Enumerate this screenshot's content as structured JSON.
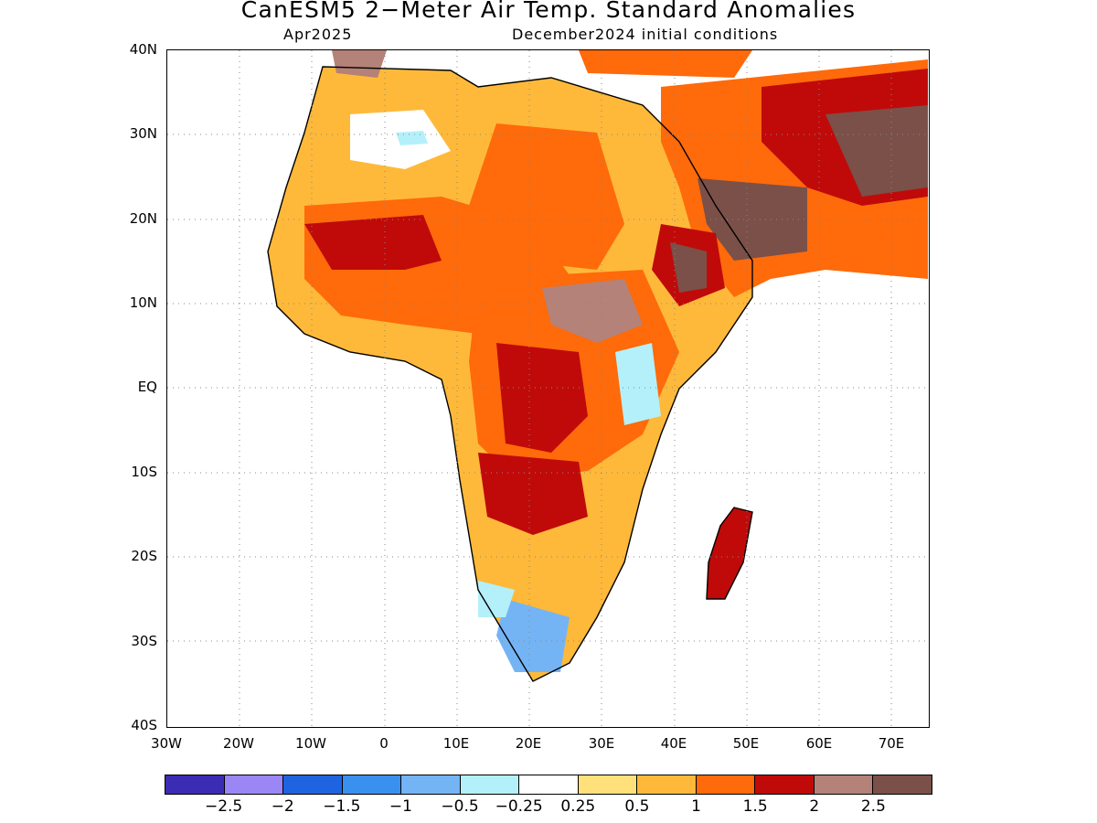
{
  "title": "CanESM5 2−Meter Air Temp. Standard Anomalies",
  "valid_month": "Apr2025",
  "initial_conditions": "December2024 initial conditions",
  "lat_labels": [
    "40N",
    "30N",
    "20N",
    "10N",
    "EQ",
    "10S",
    "20S",
    "30S",
    "40S"
  ],
  "lon_labels": [
    "30W",
    "20W",
    "10W",
    "0",
    "10E",
    "20E",
    "30E",
    "40E",
    "50E",
    "60E",
    "70E"
  ],
  "colorbar": {
    "labels": [
      "−2.5",
      "−2",
      "−1.5",
      "−1",
      "−0.5",
      "−0.25",
      "0.25",
      "0.5",
      "1",
      "1.5",
      "2",
      "2.5"
    ],
    "colors": [
      "#3c2cb4",
      "#9b86f5",
      "#1e64e1",
      "#3a90ef",
      "#74b4f5",
      "#b4f0fa",
      "#ffffff",
      "#ffe07a",
      "#ffb93a",
      "#ff6a0a",
      "#c00a0a",
      "#b48278",
      "#7a5048"
    ]
  },
  "map": {
    "region": "Africa",
    "lat_range": [
      -40,
      40
    ],
    "lon_range": [
      -30,
      75
    ],
    "land_fill_colors": {
      "ocean": "#ffffff",
      "sahara_cool": "#ffffff",
      "moderate": "#ffb93a",
      "warm": "#ff6a0a",
      "hot": "#c00a0a",
      "very_hot": "#7a5048"
    }
  }
}
